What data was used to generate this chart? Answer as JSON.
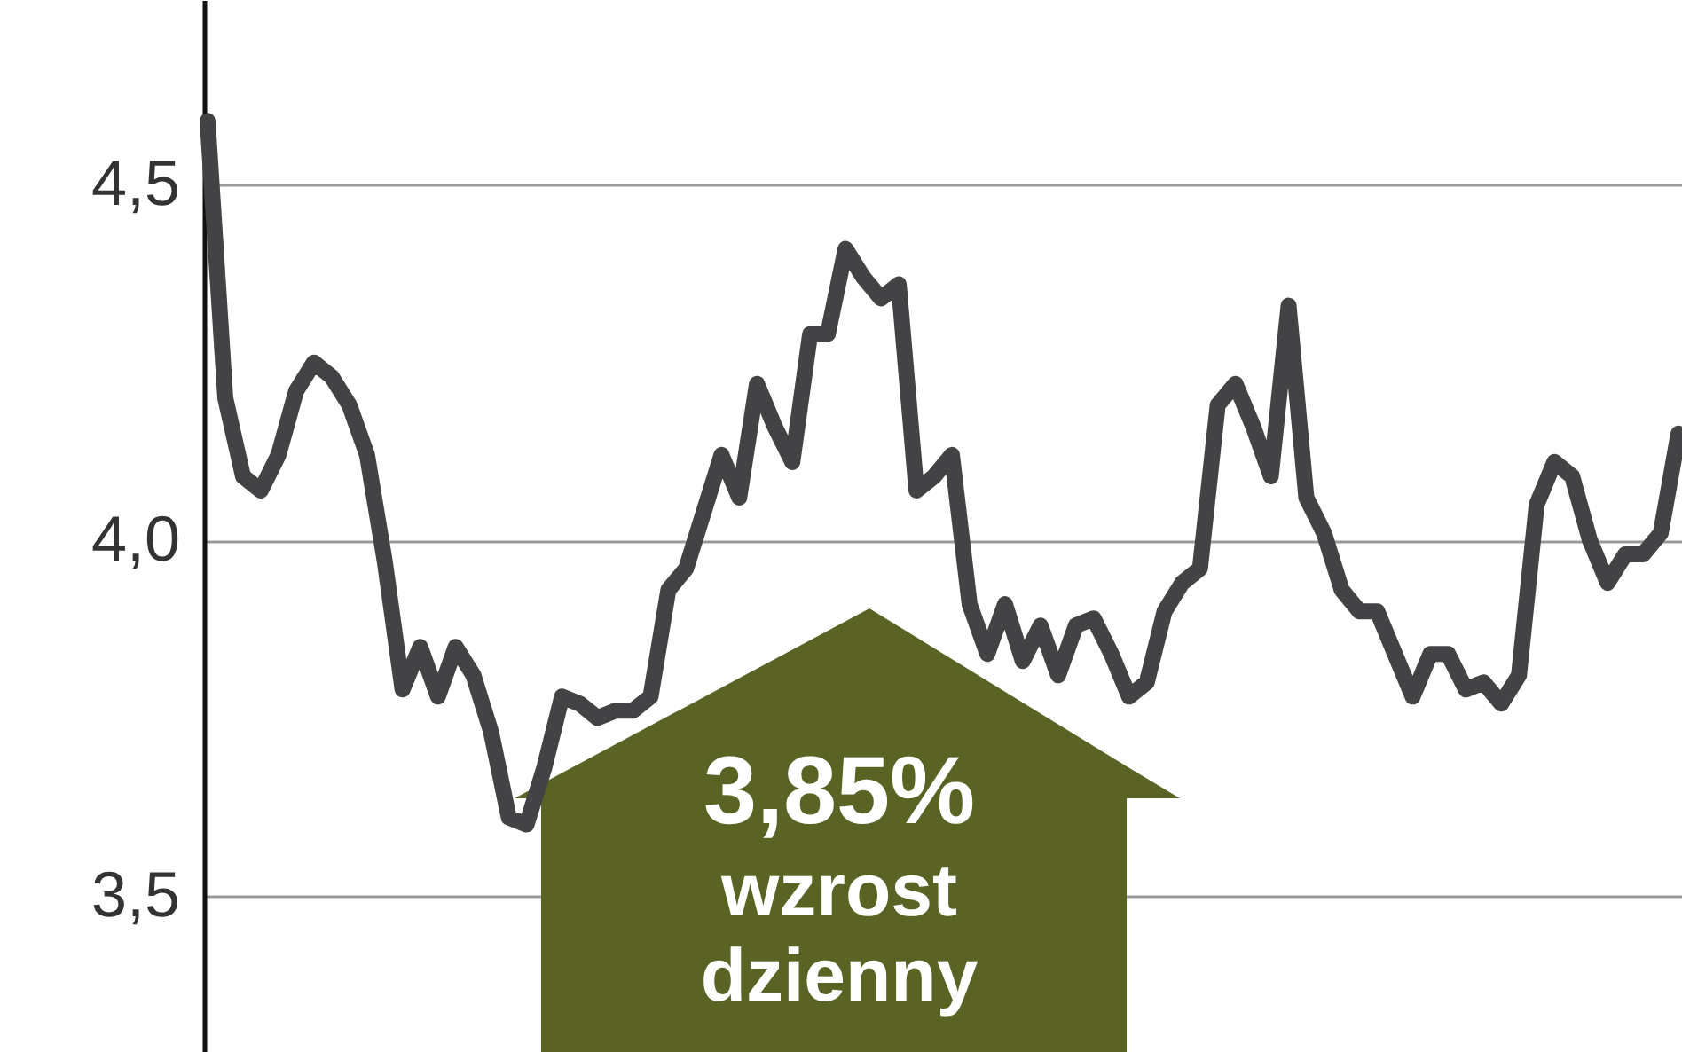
{
  "chart_data": {
    "type": "line",
    "categories": [
      null,
      null,
      null,
      null,
      null,
      null,
      null,
      null,
      null,
      null,
      null,
      null,
      null,
      null,
      null,
      null,
      null,
      null,
      null,
      null,
      null,
      null,
      null,
      null,
      null,
      null,
      null,
      null,
      null,
      null,
      null,
      null,
      null,
      null,
      null,
      null,
      null,
      null,
      null,
      null,
      null,
      null,
      null,
      null,
      null,
      null,
      null,
      null,
      null,
      null,
      null,
      null,
      null,
      null,
      null,
      null,
      null,
      null,
      null,
      null,
      null,
      null,
      null,
      null,
      null,
      null,
      null,
      null,
      null,
      null,
      null,
      null,
      null,
      null,
      null,
      null,
      null,
      null,
      null,
      null,
      null,
      null,
      null,
      null
    ],
    "series": [
      {
        "color": "#434345",
        "values": [
          4.59,
          4.2,
          4.09,
          4.07,
          4.12,
          4.21,
          4.25,
          4.23,
          4.19,
          4.12,
          3.97,
          3.79,
          3.85,
          3.78,
          3.85,
          3.81,
          3.73,
          3.61,
          3.6,
          3.68,
          3.78,
          3.77,
          3.75,
          3.76,
          3.76,
          3.78,
          3.93,
          3.96,
          4.04,
          4.12,
          4.06,
          4.22,
          4.16,
          4.11,
          4.29,
          4.29,
          4.41,
          4.37,
          4.34,
          4.36,
          4.07,
          4.09,
          4.12,
          3.91,
          3.84,
          3.91,
          3.83,
          3.88,
          3.81,
          3.88,
          3.89,
          3.84,
          3.78,
          3.8,
          3.9,
          3.94,
          3.96,
          4.19,
          4.22,
          4.16,
          4.09,
          4.33,
          4.06,
          4.01,
          3.93,
          3.9,
          3.9,
          3.84,
          3.78,
          3.84,
          3.84,
          3.79,
          3.8,
          3.77,
          3.81,
          4.05,
          4.11,
          4.09,
          4.0,
          3.94,
          3.98,
          3.98,
          4.01,
          4.15
        ]
      }
    ],
    "ylim": [
      3.28,
      4.76
    ],
    "yticks": [
      {
        "value": 3.5,
        "label": "3,5"
      },
      {
        "value": 4.0,
        "label": "4,0"
      },
      {
        "value": 4.5,
        "label": "4,5"
      }
    ],
    "grid": "y",
    "line_style": "solid",
    "tick_labels": "y",
    "annotations": [
      "3,85%",
      "wzrost",
      "dzienny"
    ]
  }
}
